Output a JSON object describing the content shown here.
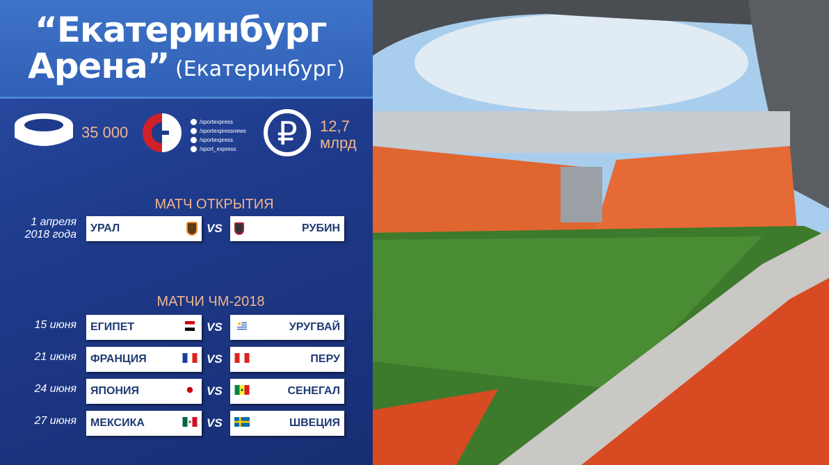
{
  "title": {
    "line1": "“Екатеринбург",
    "line2": "Арена”",
    "city": "(Екатеринбург)"
  },
  "stats": {
    "capacity": "35 000",
    "cost_value": "12,7",
    "cost_unit": "млрд"
  },
  "social": [
    {
      "icon": "vk-icon",
      "handle": "/sportexpress"
    },
    {
      "icon": "facebook-icon",
      "handle": "/sportexpressnews"
    },
    {
      "icon": "twitter-icon",
      "handle": "/sportexpress"
    },
    {
      "icon": "instagram-icon",
      "handle": "/sport_express"
    }
  ],
  "opening": {
    "heading": "МАТЧ ОТКРЫТИЯ",
    "date_line1": "1 апреля",
    "date_line2": "2018 года",
    "home": "УРАЛ",
    "away": "РУБИН",
    "vs": "VS"
  },
  "wc": {
    "heading": "МАТЧИ ЧМ-2018",
    "matches": [
      {
        "date": "15 июня",
        "home": "ЕГИПЕТ",
        "away": "УРУГВАЙ",
        "vs": "VS"
      },
      {
        "date": "21 июня",
        "home": "ФРАНЦИЯ",
        "away": "ПЕРУ",
        "vs": "VS"
      },
      {
        "date": "24 июня",
        "home": "ЯПОНИЯ",
        "away": "СЕНЕГАЛ",
        "vs": "VS"
      },
      {
        "date": "27 июня",
        "home": "МЕКСИКА",
        "away": "ШВЕЦИЯ",
        "vs": "VS"
      }
    ]
  },
  "colors": {
    "accent": "#f2b58a",
    "navy": "#1e3a8a",
    "team_text": "#1f3b73"
  }
}
